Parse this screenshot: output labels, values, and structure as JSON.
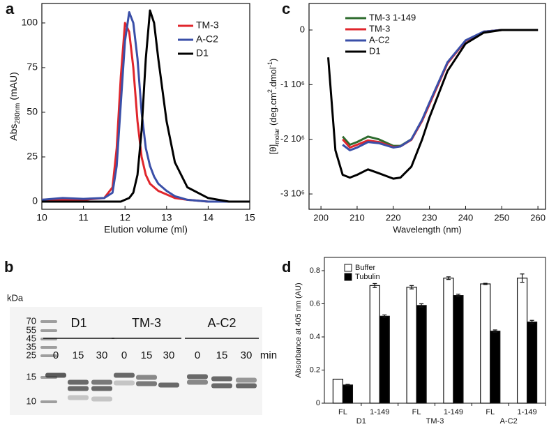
{
  "chart_data": [
    {
      "type": "line",
      "panel": "a",
      "xlabel": "Elution volume (ml)",
      "ylabel": [
        {
          "text": "Abs"
        },
        {
          "text": "280nm",
          "style": "sub"
        },
        {
          "text": "(mAU)",
          "space_before": true
        }
      ],
      "x": [
        10,
        10.5,
        11,
        11.5,
        11.7,
        11.8,
        11.9,
        12,
        12.1,
        12.2,
        12.3,
        12.4,
        12.5,
        12.6,
        12.7,
        12.8,
        13,
        13.2,
        13.5,
        14,
        14.5,
        15
      ],
      "xlim": [
        10,
        15
      ],
      "xticks": [
        10,
        11,
        12,
        13,
        14,
        15
      ],
      "ylim": [
        -4.3,
        110.9
      ],
      "yticks": [
        0,
        25,
        50,
        75,
        100
      ],
      "legend_text_colored": true,
      "series": [
        {
          "name": "TM-3",
          "color": "#e0262c",
          "values": [
            1,
            1,
            1,
            2,
            8,
            30,
            70,
            100,
            95,
            75,
            45,
            25,
            15,
            10,
            8,
            6,
            4,
            2,
            1,
            0,
            0,
            0
          ]
        },
        {
          "name": "A-C2",
          "color": "#3a4fa8",
          "values": [
            1,
            2,
            1.5,
            2,
            5,
            20,
            55,
            90,
            106,
            100,
            80,
            50,
            30,
            20,
            14,
            10,
            6,
            3,
            1,
            0,
            0,
            0
          ]
        },
        {
          "name": "D1",
          "color": "#000000",
          "values": [
            0,
            0,
            0,
            0,
            0,
            0,
            0,
            1,
            2,
            5,
            15,
            40,
            80,
            107,
            100,
            80,
            45,
            22,
            8,
            2,
            0,
            0
          ]
        }
      ]
    },
    {
      "type": "line",
      "panel": "c",
      "xlabel": "Wavelength (nm)",
      "ylabel": [
        {
          "text": "[θ]"
        },
        {
          "text": "molar",
          "style": "sub"
        },
        {
          "text": "(deg.cm",
          "space_before": true
        },
        {
          "text": "2",
          "style": "sup"
        },
        {
          "text": ".dmol"
        },
        {
          "text": "-1",
          "style": "sup"
        },
        {
          "text": ")"
        }
      ],
      "x": [
        202,
        204,
        206,
        208,
        210,
        213,
        216,
        220,
        222,
        225,
        228,
        230,
        235,
        240,
        245,
        250,
        255,
        260
      ],
      "xlim": [
        196.7,
        262.1
      ],
      "xticks": [
        200,
        210,
        220,
        230,
        240,
        250,
        260
      ],
      "ylim": [
        -3280000,
        485000
      ],
      "yticks": [
        0,
        {
          "value": -1000000,
          "label": "-1 10⁶"
        },
        {
          "value": -2000000,
          "label": "-2 10⁶"
        },
        {
          "value": -3000000,
          "label": "-3 10⁶"
        }
      ],
      "legend_text_colored": false,
      "series": [
        {
          "name": "TM-3 1-149",
          "color": "#2e6b2e",
          "values": [
            null,
            null,
            -1950000,
            -2100000,
            -2050000,
            -1950000,
            -2000000,
            -2120000,
            -2120000,
            -2000000,
            -1650000,
            -1350000,
            -600000,
            -200000,
            -30000,
            0,
            0,
            0
          ]
        },
        {
          "name": "TM-3",
          "color": "#e0262c",
          "values": [
            null,
            null,
            -2000000,
            -2150000,
            -2100000,
            -2020000,
            -2050000,
            -2140000,
            -2130000,
            -2010000,
            -1660000,
            -1360000,
            -610000,
            -200000,
            -30000,
            0,
            0,
            0
          ]
        },
        {
          "name": "A-C2",
          "color": "#3a4fa8",
          "values": [
            null,
            null,
            -2100000,
            -2200000,
            -2150000,
            -2050000,
            -2070000,
            -2150000,
            -2130000,
            -2000000,
            -1640000,
            -1330000,
            -590000,
            -190000,
            -30000,
            0,
            0,
            0
          ]
        },
        {
          "name": "D1",
          "color": "#000000",
          "values": [
            -500000,
            -2200000,
            -2650000,
            -2700000,
            -2650000,
            -2550000,
            -2620000,
            -2720000,
            -2700000,
            -2500000,
            -2000000,
            -1600000,
            -750000,
            -250000,
            -50000,
            0,
            0,
            0
          ]
        }
      ]
    },
    {
      "type": "bar",
      "panel": "d",
      "ylabel": "Absorbance at 405 nm (AU)",
      "categories": [
        "FL",
        "1-149",
        "FL",
        "1-149",
        "FL",
        "1-149"
      ],
      "groups": [
        "D1",
        "TM-3",
        "A-C2"
      ],
      "ylim": [
        0,
        0.88
      ],
      "yticks": [
        0,
        0.2,
        0.4,
        0.6,
        0.8
      ],
      "series": [
        {
          "name": "Buffer",
          "color": "#ffffff",
          "values": [
            0.145,
            0.71,
            0.7,
            0.755,
            0.72,
            0.755
          ],
          "errors": [
            0,
            0.012,
            0.01,
            0.008,
            0.004,
            0.025
          ]
        },
        {
          "name": "Tubulin",
          "color": "#000000",
          "values": [
            0.11,
            0.525,
            0.59,
            0.65,
            0.435,
            0.49
          ],
          "errors": [
            0.004,
            0.008,
            0.01,
            0.008,
            0.007,
            0.01
          ]
        }
      ]
    }
  ],
  "gel": {
    "panel": "b",
    "unit": "kDa",
    "ladder": [
      70,
      55,
      45,
      35,
      25,
      15,
      10
    ],
    "lanes": [
      {
        "name": "D1",
        "times": [
          0,
          15,
          30
        ]
      },
      {
        "name": "TM-3",
        "times": [
          0,
          15,
          30
        ]
      },
      {
        "name": "A-C2",
        "times": [
          0,
          15,
          30
        ]
      }
    ],
    "time_unit": "min"
  }
}
